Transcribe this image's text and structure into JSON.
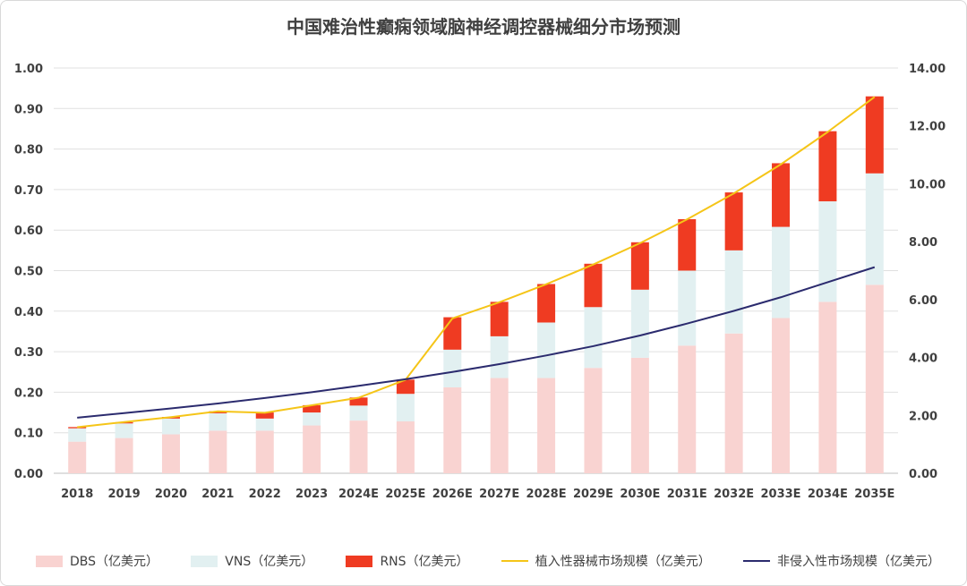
{
  "chart_data": {
    "type": "bar",
    "title": "中国难治性癫痫领域脑神经调控器械细分市场预测",
    "categories": [
      "2018",
      "2019",
      "2020",
      "2021",
      "2022",
      "2023",
      "2024E",
      "2025E",
      "2026E",
      "2027E",
      "2028E",
      "2029E",
      "2030E",
      "2031E",
      "2032E",
      "2033E",
      "2034E",
      "2035E"
    ],
    "stacked": true,
    "left_axis": {
      "min": 0,
      "max": 1.0,
      "step": 0.1,
      "tick_labels": [
        "0.00",
        "0.10",
        "0.20",
        "0.30",
        "0.40",
        "0.50",
        "0.60",
        "0.70",
        "0.80",
        "0.90",
        "1.00"
      ]
    },
    "right_axis": {
      "min": 0,
      "max": 14.0,
      "step": 2.0,
      "tick_labels": [
        "0.00",
        "2.00",
        "4.00",
        "6.00",
        "8.00",
        "10.00",
        "12.00",
        "14.00"
      ]
    },
    "grid": true,
    "legend_position": "bottom",
    "series": [
      {
        "name": "DBS（亿美元）",
        "kind": "bar",
        "axis": "left",
        "color": "#f9d3d1",
        "values": [
          0.078,
          0.087,
          0.096,
          0.105,
          0.105,
          0.118,
          0.13,
          0.128,
          0.212,
          0.235,
          0.235,
          0.26,
          0.285,
          0.315,
          0.345,
          0.383,
          0.423,
          0.465
        ]
      },
      {
        "name": "VNS（亿美元）",
        "kind": "bar",
        "axis": "left",
        "color": "#e2f0f1",
        "values": [
          0.033,
          0.036,
          0.039,
          0.043,
          0.03,
          0.032,
          0.037,
          0.068,
          0.093,
          0.103,
          0.137,
          0.15,
          0.168,
          0.185,
          0.205,
          0.225,
          0.248,
          0.275
        ]
      },
      {
        "name": "RNS（亿美元）",
        "kind": "bar",
        "axis": "left",
        "color": "#ef3b22",
        "values": [
          0.003,
          0.003,
          0.004,
          0.005,
          0.015,
          0.018,
          0.02,
          0.035,
          0.08,
          0.085,
          0.095,
          0.107,
          0.117,
          0.127,
          0.143,
          0.157,
          0.173,
          0.19
        ]
      },
      {
        "name": "植入性器械市场规模（亿美元）",
        "kind": "line",
        "axis": "right",
        "color": "#f5c518",
        "values": [
          1.59,
          1.77,
          1.94,
          2.14,
          2.09,
          2.35,
          2.61,
          3.23,
          5.35,
          5.91,
          6.53,
          7.21,
          7.95,
          8.77,
          9.67,
          10.67,
          11.79,
          13.0
        ]
      },
      {
        "name": "非侵入性市场规模（亿美元）",
        "kind": "line",
        "axis": "right",
        "color": "#2b2b6e",
        "values": [
          1.92,
          2.08,
          2.24,
          2.41,
          2.6,
          2.8,
          3.02,
          3.25,
          3.5,
          3.77,
          4.07,
          4.39,
          4.76,
          5.17,
          5.61,
          6.08,
          6.6,
          7.12
        ]
      }
    ]
  }
}
